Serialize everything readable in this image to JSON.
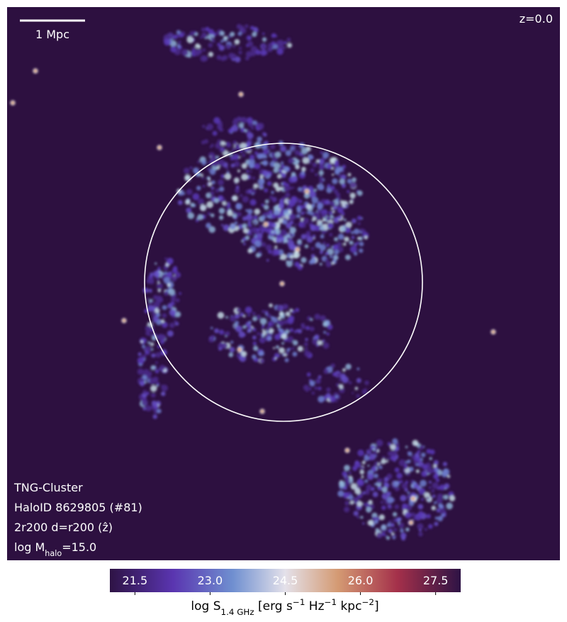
{
  "image": {
    "scale_bar": "1 Mpc",
    "redshift": "z=0.0",
    "info": [
      "TNG-Cluster",
      "HaloID 8629805 (#81)",
      "2r200 d=r200 (ẑ)"
    ],
    "mass": [
      {
        "text": "log M"
      },
      {
        "text": "halo",
        "style": "sub"
      },
      {
        "text": "=15.0"
      }
    ]
  },
  "colorbar": {
    "lim": [
      21,
      28
    ],
    "ticks": [
      21.5,
      {
        "value": 23,
        "label": "23.0"
      },
      24.5,
      {
        "value": 26,
        "label": "26.0"
      },
      27.5
    ],
    "label": [
      {
        "text": "log S"
      },
      {
        "text": "1.4 GHz",
        "style": "sub"
      },
      {
        "text": " [erg s"
      },
      {
        "text": "−1",
        "style": "sup"
      },
      {
        "text": " Hz"
      },
      {
        "text": "−1",
        "style": "sup"
      },
      {
        "text": " kpc"
      },
      {
        "text": "−2",
        "style": "sup"
      },
      {
        "text": "]"
      }
    ]
  }
}
